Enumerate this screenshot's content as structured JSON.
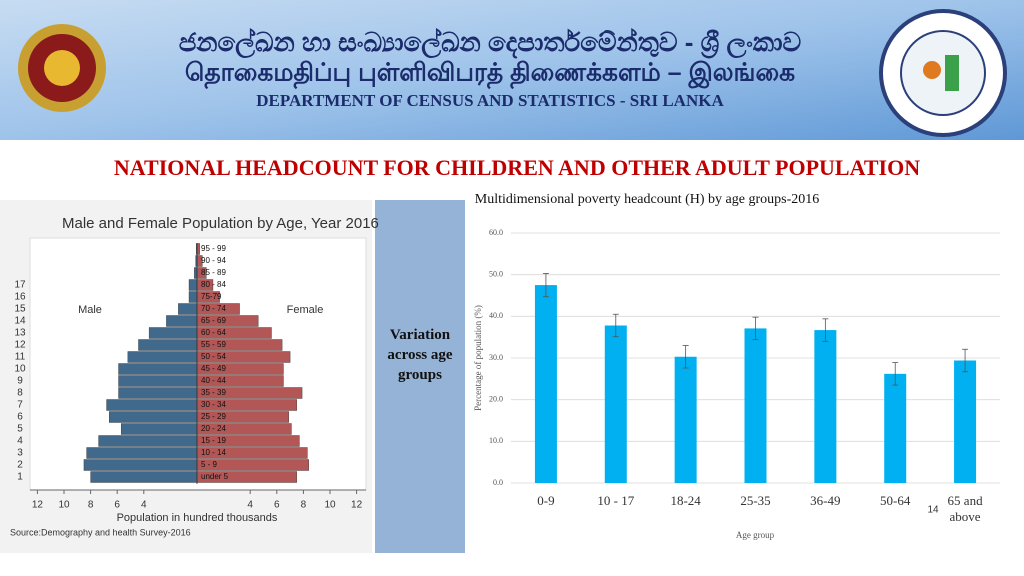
{
  "header": {
    "sinhala": "ජනලේඛන හා සංඛ්‍යාලේඛන දෙපාර්තමේන්තුව - ශ්‍රී ලංකාව",
    "tamil": "தொகைமதிப்பு புள்ளிவிபரத் திணைக்களம் – இலங்கை",
    "english": "DEPARTMENT OF CENSUS AND STATISTICS - SRI LANKA"
  },
  "title": "NATIONAL HEADCOUNT  FOR CHILDREN AND OTHER ADULT POPULATION",
  "side_note": "Variation across age groups",
  "page_number": "14",
  "chart_data": [
    {
      "type": "pyramid",
      "title": "Male and Female Population by Age, Year 2016",
      "categories": [
        "under 5",
        "5 - 9",
        "10 - 14",
        "15 - 19",
        "20 - 24",
        "25 - 29",
        "30 - 34",
        "35 - 39",
        "40 - 44",
        "45 - 49",
        "50 - 54",
        "55 - 59",
        "60 - 64",
        "65 - 69",
        "70 - 74",
        "75-79",
        "80 - 84",
        "85 - 89",
        "90 - 94",
        "95 - 99"
      ],
      "row_labels": [
        1,
        2,
        3,
        4,
        5,
        6,
        7,
        8,
        9,
        10,
        11,
        12,
        13,
        14,
        15,
        16,
        17
      ],
      "series": [
        {
          "name": "Male",
          "color": "#41698c",
          "values": [
            8.0,
            8.5,
            8.3,
            7.4,
            5.7,
            6.6,
            6.8,
            5.9,
            5.9,
            5.9,
            5.2,
            4.4,
            3.6,
            2.3,
            1.4,
            0.6,
            0.6,
            0.2,
            0.1,
            0.05
          ]
        },
        {
          "name": "Female",
          "color": "#b25656",
          "values": [
            7.5,
            8.4,
            8.3,
            7.7,
            7.1,
            6.9,
            7.5,
            7.9,
            6.5,
            6.5,
            7.0,
            6.4,
            5.6,
            4.6,
            3.2,
            1.7,
            1.2,
            0.7,
            0.4,
            0.2
          ]
        }
      ],
      "xlim": [
        0,
        12
      ],
      "xticks": [
        4,
        6,
        8,
        10,
        12
      ],
      "xlabel": "Population in hundred  thousands",
      "source": "Source:Demography and health Survey-2016"
    },
    {
      "type": "bar",
      "title": "Multidimensional poverty headcount (H) by age groups-2016",
      "categories": [
        "0-9",
        "10 - 17",
        "18-24",
        "25-35",
        "36-49",
        "50-64",
        "65 and above"
      ],
      "values": [
        47.5,
        37.8,
        30.3,
        37.1,
        36.7,
        26.2,
        29.4
      ],
      "errors": [
        2.8,
        2.7,
        2.7,
        2.7,
        2.7,
        2.7,
        2.7
      ],
      "color": "#00b0f0",
      "ylim": [
        0,
        60
      ],
      "yticks": [
        {
          "value": 0,
          "label": "0.0"
        },
        {
          "value": 10,
          "label": "10.0"
        },
        {
          "value": 20,
          "label": "20.0"
        },
        {
          "value": 30,
          "label": "30.0"
        },
        {
          "value": 40,
          "label": "40.0"
        },
        {
          "value": 50,
          "label": "50.0"
        },
        {
          "value": 60,
          "label": "60.0"
        }
      ],
      "ylabel": "Percentage of population (%)",
      "xlabel": "Age group",
      "grid": true
    }
  ]
}
